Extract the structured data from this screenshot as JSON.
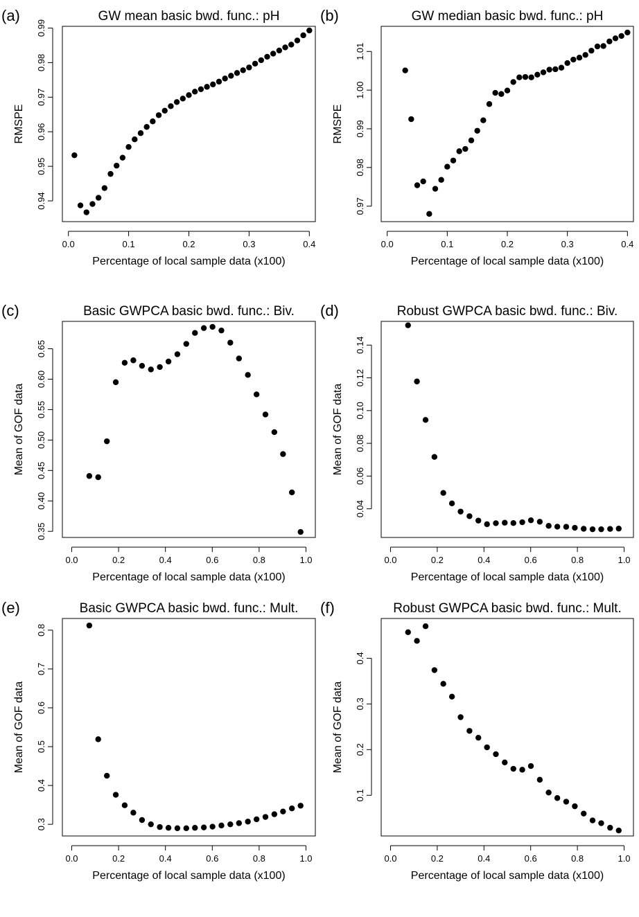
{
  "chart_data": [
    {
      "type": "scatter",
      "panel_label": "(a)",
      "title": "GW mean basic bwd. func.: pH",
      "xlabel": "Percentage of local sample data (x100)",
      "ylabel": "RMSPE",
      "xlim": [
        -0.01,
        0.41
      ],
      "ylim": [
        0.934,
        0.9905
      ],
      "x_ticks": [
        0.0,
        0.1,
        0.2,
        0.3,
        0.4
      ],
      "x_tick_labels": [
        "0.0",
        "0.1",
        "0.2",
        "0.3",
        "0.4"
      ],
      "y_ticks": [
        0.94,
        0.95,
        0.96,
        0.97,
        0.98,
        0.99
      ],
      "y_tick_labels": [
        "0.94",
        "0.95",
        "0.96",
        "0.97",
        "0.98",
        "0.99"
      ],
      "points": [
        [
          0.01,
          0.9532
        ],
        [
          0.02,
          0.9387
        ],
        [
          0.03,
          0.9367
        ],
        [
          0.04,
          0.9391
        ],
        [
          0.05,
          0.9409
        ],
        [
          0.06,
          0.9437
        ],
        [
          0.07,
          0.9478
        ],
        [
          0.08,
          0.9502
        ],
        [
          0.09,
          0.9525
        ],
        [
          0.1,
          0.9556
        ],
        [
          0.11,
          0.9578
        ],
        [
          0.12,
          0.9596
        ],
        [
          0.13,
          0.9614
        ],
        [
          0.14,
          0.963
        ],
        [
          0.15,
          0.9648
        ],
        [
          0.16,
          0.9661
        ],
        [
          0.17,
          0.9674
        ],
        [
          0.18,
          0.9686
        ],
        [
          0.19,
          0.9696
        ],
        [
          0.2,
          0.9706
        ],
        [
          0.21,
          0.9716
        ],
        [
          0.22,
          0.9723
        ],
        [
          0.23,
          0.973
        ],
        [
          0.24,
          0.9737
        ],
        [
          0.25,
          0.9745
        ],
        [
          0.26,
          0.9754
        ],
        [
          0.27,
          0.9762
        ],
        [
          0.28,
          0.977
        ],
        [
          0.29,
          0.9778
        ],
        [
          0.3,
          0.9786
        ],
        [
          0.31,
          0.9797
        ],
        [
          0.32,
          0.9807
        ],
        [
          0.33,
          0.9817
        ],
        [
          0.34,
          0.9826
        ],
        [
          0.35,
          0.9835
        ],
        [
          0.36,
          0.9844
        ],
        [
          0.37,
          0.9852
        ],
        [
          0.38,
          0.9864
        ],
        [
          0.39,
          0.9879
        ],
        [
          0.4,
          0.9893
        ]
      ]
    },
    {
      "type": "scatter",
      "panel_label": "(b)",
      "title": "GW median basic bwd. func.: pH",
      "xlabel": "Percentage of local sample data (x100)",
      "ylabel": "RMSPE",
      "xlim": [
        -0.01,
        0.41
      ],
      "ylim": [
        0.966,
        1.0165
      ],
      "x_ticks": [
        0.0,
        0.1,
        0.2,
        0.3,
        0.4
      ],
      "x_tick_labels": [
        "0.0",
        "0.1",
        "0.2",
        "0.3",
        "0.4"
      ],
      "y_ticks": [
        0.97,
        0.98,
        0.99,
        1.0,
        1.01
      ],
      "y_tick_labels": [
        "0.97",
        "0.98",
        "0.99",
        "1.00",
        "1.01"
      ],
      "points": [
        [
          0.03,
          1.0051
        ],
        [
          0.04,
          0.9925
        ],
        [
          0.05,
          0.9754
        ],
        [
          0.06,
          0.9764
        ],
        [
          0.07,
          0.968
        ],
        [
          0.08,
          0.9745
        ],
        [
          0.09,
          0.9768
        ],
        [
          0.1,
          0.9802
        ],
        [
          0.11,
          0.9818
        ],
        [
          0.12,
          0.9842
        ],
        [
          0.13,
          0.9848
        ],
        [
          0.14,
          0.987
        ],
        [
          0.15,
          0.9895
        ],
        [
          0.16,
          0.9922
        ],
        [
          0.17,
          0.9964
        ],
        [
          0.18,
          0.9993
        ],
        [
          0.19,
          0.999
        ],
        [
          0.2,
          0.9999
        ],
        [
          0.21,
          1.0021
        ],
        [
          0.22,
          1.0033
        ],
        [
          0.23,
          1.0034
        ],
        [
          0.24,
          1.0033
        ],
        [
          0.25,
          1.004
        ],
        [
          0.26,
          1.0046
        ],
        [
          0.27,
          1.0053
        ],
        [
          0.28,
          1.0054
        ],
        [
          0.29,
          1.0058
        ],
        [
          0.3,
          1.007
        ],
        [
          0.31,
          1.0079
        ],
        [
          0.32,
          1.0084
        ],
        [
          0.33,
          1.0091
        ],
        [
          0.34,
          1.0102
        ],
        [
          0.35,
          1.0113
        ],
        [
          0.36,
          1.0114
        ],
        [
          0.37,
          1.0126
        ],
        [
          0.38,
          1.0134
        ],
        [
          0.39,
          1.014
        ],
        [
          0.4,
          1.0149
        ]
      ]
    },
    {
      "type": "scatter",
      "panel_label": "(c)",
      "title": "Basic GWPCA basic bwd. func.: Biv.",
      "xlabel": "Percentage of local sample data (x100)",
      "ylabel": "Mean of GOF data",
      "xlim": [
        -0.04,
        1.04
      ],
      "ylim": [
        0.34,
        0.695
      ],
      "x_ticks": [
        0.0,
        0.2,
        0.4,
        0.6,
        0.8,
        1.0
      ],
      "x_tick_labels": [
        "0.0",
        "0.2",
        "0.4",
        "0.6",
        "0.8",
        "1.0"
      ],
      "y_ticks": [
        0.35,
        0.4,
        0.45,
        0.5,
        0.55,
        0.6,
        0.65
      ],
      "y_tick_labels": [
        "0.35",
        "0.40",
        "0.45",
        "0.50",
        "0.55",
        "0.60",
        "0.65"
      ],
      "points": [
        [
          0.075,
          0.441
        ],
        [
          0.113,
          0.439
        ],
        [
          0.15,
          0.498
        ],
        [
          0.188,
          0.595
        ],
        [
          0.226,
          0.627
        ],
        [
          0.263,
          0.631
        ],
        [
          0.3,
          0.622
        ],
        [
          0.338,
          0.616
        ],
        [
          0.376,
          0.62
        ],
        [
          0.413,
          0.629
        ],
        [
          0.451,
          0.641
        ],
        [
          0.489,
          0.658
        ],
        [
          0.526,
          0.676
        ],
        [
          0.564,
          0.684
        ],
        [
          0.601,
          0.686
        ],
        [
          0.639,
          0.68
        ],
        [
          0.677,
          0.66
        ],
        [
          0.714,
          0.634
        ],
        [
          0.752,
          0.607
        ],
        [
          0.789,
          0.575
        ],
        [
          0.827,
          0.542
        ],
        [
          0.865,
          0.513
        ],
        [
          0.902,
          0.477
        ],
        [
          0.94,
          0.414
        ],
        [
          0.977,
          0.349
        ]
      ]
    },
    {
      "type": "scatter",
      "panel_label": "(d)",
      "title": "Robust GWPCA basic bwd. func.: Biv.",
      "xlabel": "Percentage of local sample data (x100)",
      "ylabel": "Mean of GOF data",
      "xlim": [
        -0.04,
        1.04
      ],
      "ylim": [
        0.0225,
        0.1545
      ],
      "x_ticks": [
        0.0,
        0.2,
        0.4,
        0.6,
        0.8,
        1.0
      ],
      "x_tick_labels": [
        "0.0",
        "0.2",
        "0.4",
        "0.6",
        "0.8",
        "1.0"
      ],
      "y_ticks": [
        0.04,
        0.06,
        0.08,
        0.1,
        0.12,
        0.14
      ],
      "y_tick_labels": [
        "0.04",
        "0.06",
        "0.08",
        "0.10",
        "0.12",
        "0.14"
      ],
      "points": [
        [
          0.075,
          0.1521
        ],
        [
          0.113,
          0.1178
        ],
        [
          0.15,
          0.0943
        ],
        [
          0.188,
          0.0717
        ],
        [
          0.226,
          0.0497
        ],
        [
          0.263,
          0.0433
        ],
        [
          0.3,
          0.0383
        ],
        [
          0.338,
          0.0355
        ],
        [
          0.376,
          0.0328
        ],
        [
          0.413,
          0.0306
        ],
        [
          0.451,
          0.0312
        ],
        [
          0.489,
          0.0315
        ],
        [
          0.526,
          0.0313
        ],
        [
          0.564,
          0.0318
        ],
        [
          0.601,
          0.033
        ],
        [
          0.639,
          0.0321
        ],
        [
          0.677,
          0.0296
        ],
        [
          0.714,
          0.0291
        ],
        [
          0.752,
          0.029
        ],
        [
          0.789,
          0.0284
        ],
        [
          0.827,
          0.0278
        ],
        [
          0.865,
          0.0275
        ],
        [
          0.902,
          0.0275
        ],
        [
          0.94,
          0.0277
        ],
        [
          0.977,
          0.0279
        ]
      ]
    },
    {
      "type": "scatter",
      "panel_label": "(e)",
      "title": "Basic GWPCA basic bwd. func.: Mult.",
      "xlabel": "Percentage of local sample data (x100)",
      "ylabel": "Mean of GOF data",
      "xlim": [
        -0.04,
        1.04
      ],
      "ylim": [
        0.27,
        0.83
      ],
      "x_ticks": [
        0.0,
        0.2,
        0.4,
        0.6,
        0.8,
        1.0
      ],
      "x_tick_labels": [
        "0.0",
        "0.2",
        "0.4",
        "0.6",
        "0.8",
        "1.0"
      ],
      "y_ticks": [
        0.3,
        0.4,
        0.5,
        0.6,
        0.7,
        0.8
      ],
      "y_tick_labels": [
        "0.3",
        "0.4",
        "0.5",
        "0.6",
        "0.7",
        "0.8"
      ],
      "points": [
        [
          0.075,
          0.812
        ],
        [
          0.113,
          0.519
        ],
        [
          0.15,
          0.425
        ],
        [
          0.188,
          0.376
        ],
        [
          0.226,
          0.349
        ],
        [
          0.263,
          0.33
        ],
        [
          0.3,
          0.311
        ],
        [
          0.338,
          0.3
        ],
        [
          0.376,
          0.293
        ],
        [
          0.413,
          0.291
        ],
        [
          0.451,
          0.29
        ],
        [
          0.489,
          0.29
        ],
        [
          0.526,
          0.291
        ],
        [
          0.564,
          0.292
        ],
        [
          0.601,
          0.294
        ],
        [
          0.639,
          0.297
        ],
        [
          0.677,
          0.3
        ],
        [
          0.714,
          0.303
        ],
        [
          0.752,
          0.307
        ],
        [
          0.789,
          0.313
        ],
        [
          0.827,
          0.319
        ],
        [
          0.865,
          0.326
        ],
        [
          0.902,
          0.333
        ],
        [
          0.94,
          0.341
        ],
        [
          0.977,
          0.348
        ]
      ]
    },
    {
      "type": "scatter",
      "panel_label": "(f)",
      "title": "Robust GWPCA basic bwd. func.: Mult.",
      "xlabel": "Percentage of local sample data (x100)",
      "ylabel": "Mean of GOF data",
      "xlim": [
        -0.04,
        1.04
      ],
      "ylim": [
        0.011,
        0.487
      ],
      "x_ticks": [
        0.0,
        0.2,
        0.4,
        0.6,
        0.8,
        1.0
      ],
      "x_tick_labels": [
        "0.0",
        "0.2",
        "0.4",
        "0.6",
        "0.8",
        "1.0"
      ],
      "y_ticks": [
        0.1,
        0.2,
        0.3,
        0.4
      ],
      "y_tick_labels": [
        "0.1",
        "0.2",
        "0.3",
        "0.4"
      ],
      "points": [
        [
          0.075,
          0.457
        ],
        [
          0.113,
          0.438
        ],
        [
          0.15,
          0.47
        ],
        [
          0.188,
          0.374
        ],
        [
          0.226,
          0.344
        ],
        [
          0.263,
          0.316
        ],
        [
          0.3,
          0.271
        ],
        [
          0.338,
          0.241
        ],
        [
          0.376,
          0.226
        ],
        [
          0.413,
          0.205
        ],
        [
          0.451,
          0.19
        ],
        [
          0.489,
          0.172
        ],
        [
          0.526,
          0.158
        ],
        [
          0.564,
          0.156
        ],
        [
          0.601,
          0.164
        ],
        [
          0.639,
          0.134
        ],
        [
          0.677,
          0.106
        ],
        [
          0.714,
          0.094
        ],
        [
          0.752,
          0.086
        ],
        [
          0.789,
          0.076
        ],
        [
          0.827,
          0.06
        ],
        [
          0.865,
          0.045
        ],
        [
          0.902,
          0.039
        ],
        [
          0.94,
          0.029
        ],
        [
          0.977,
          0.023
        ]
      ]
    }
  ]
}
